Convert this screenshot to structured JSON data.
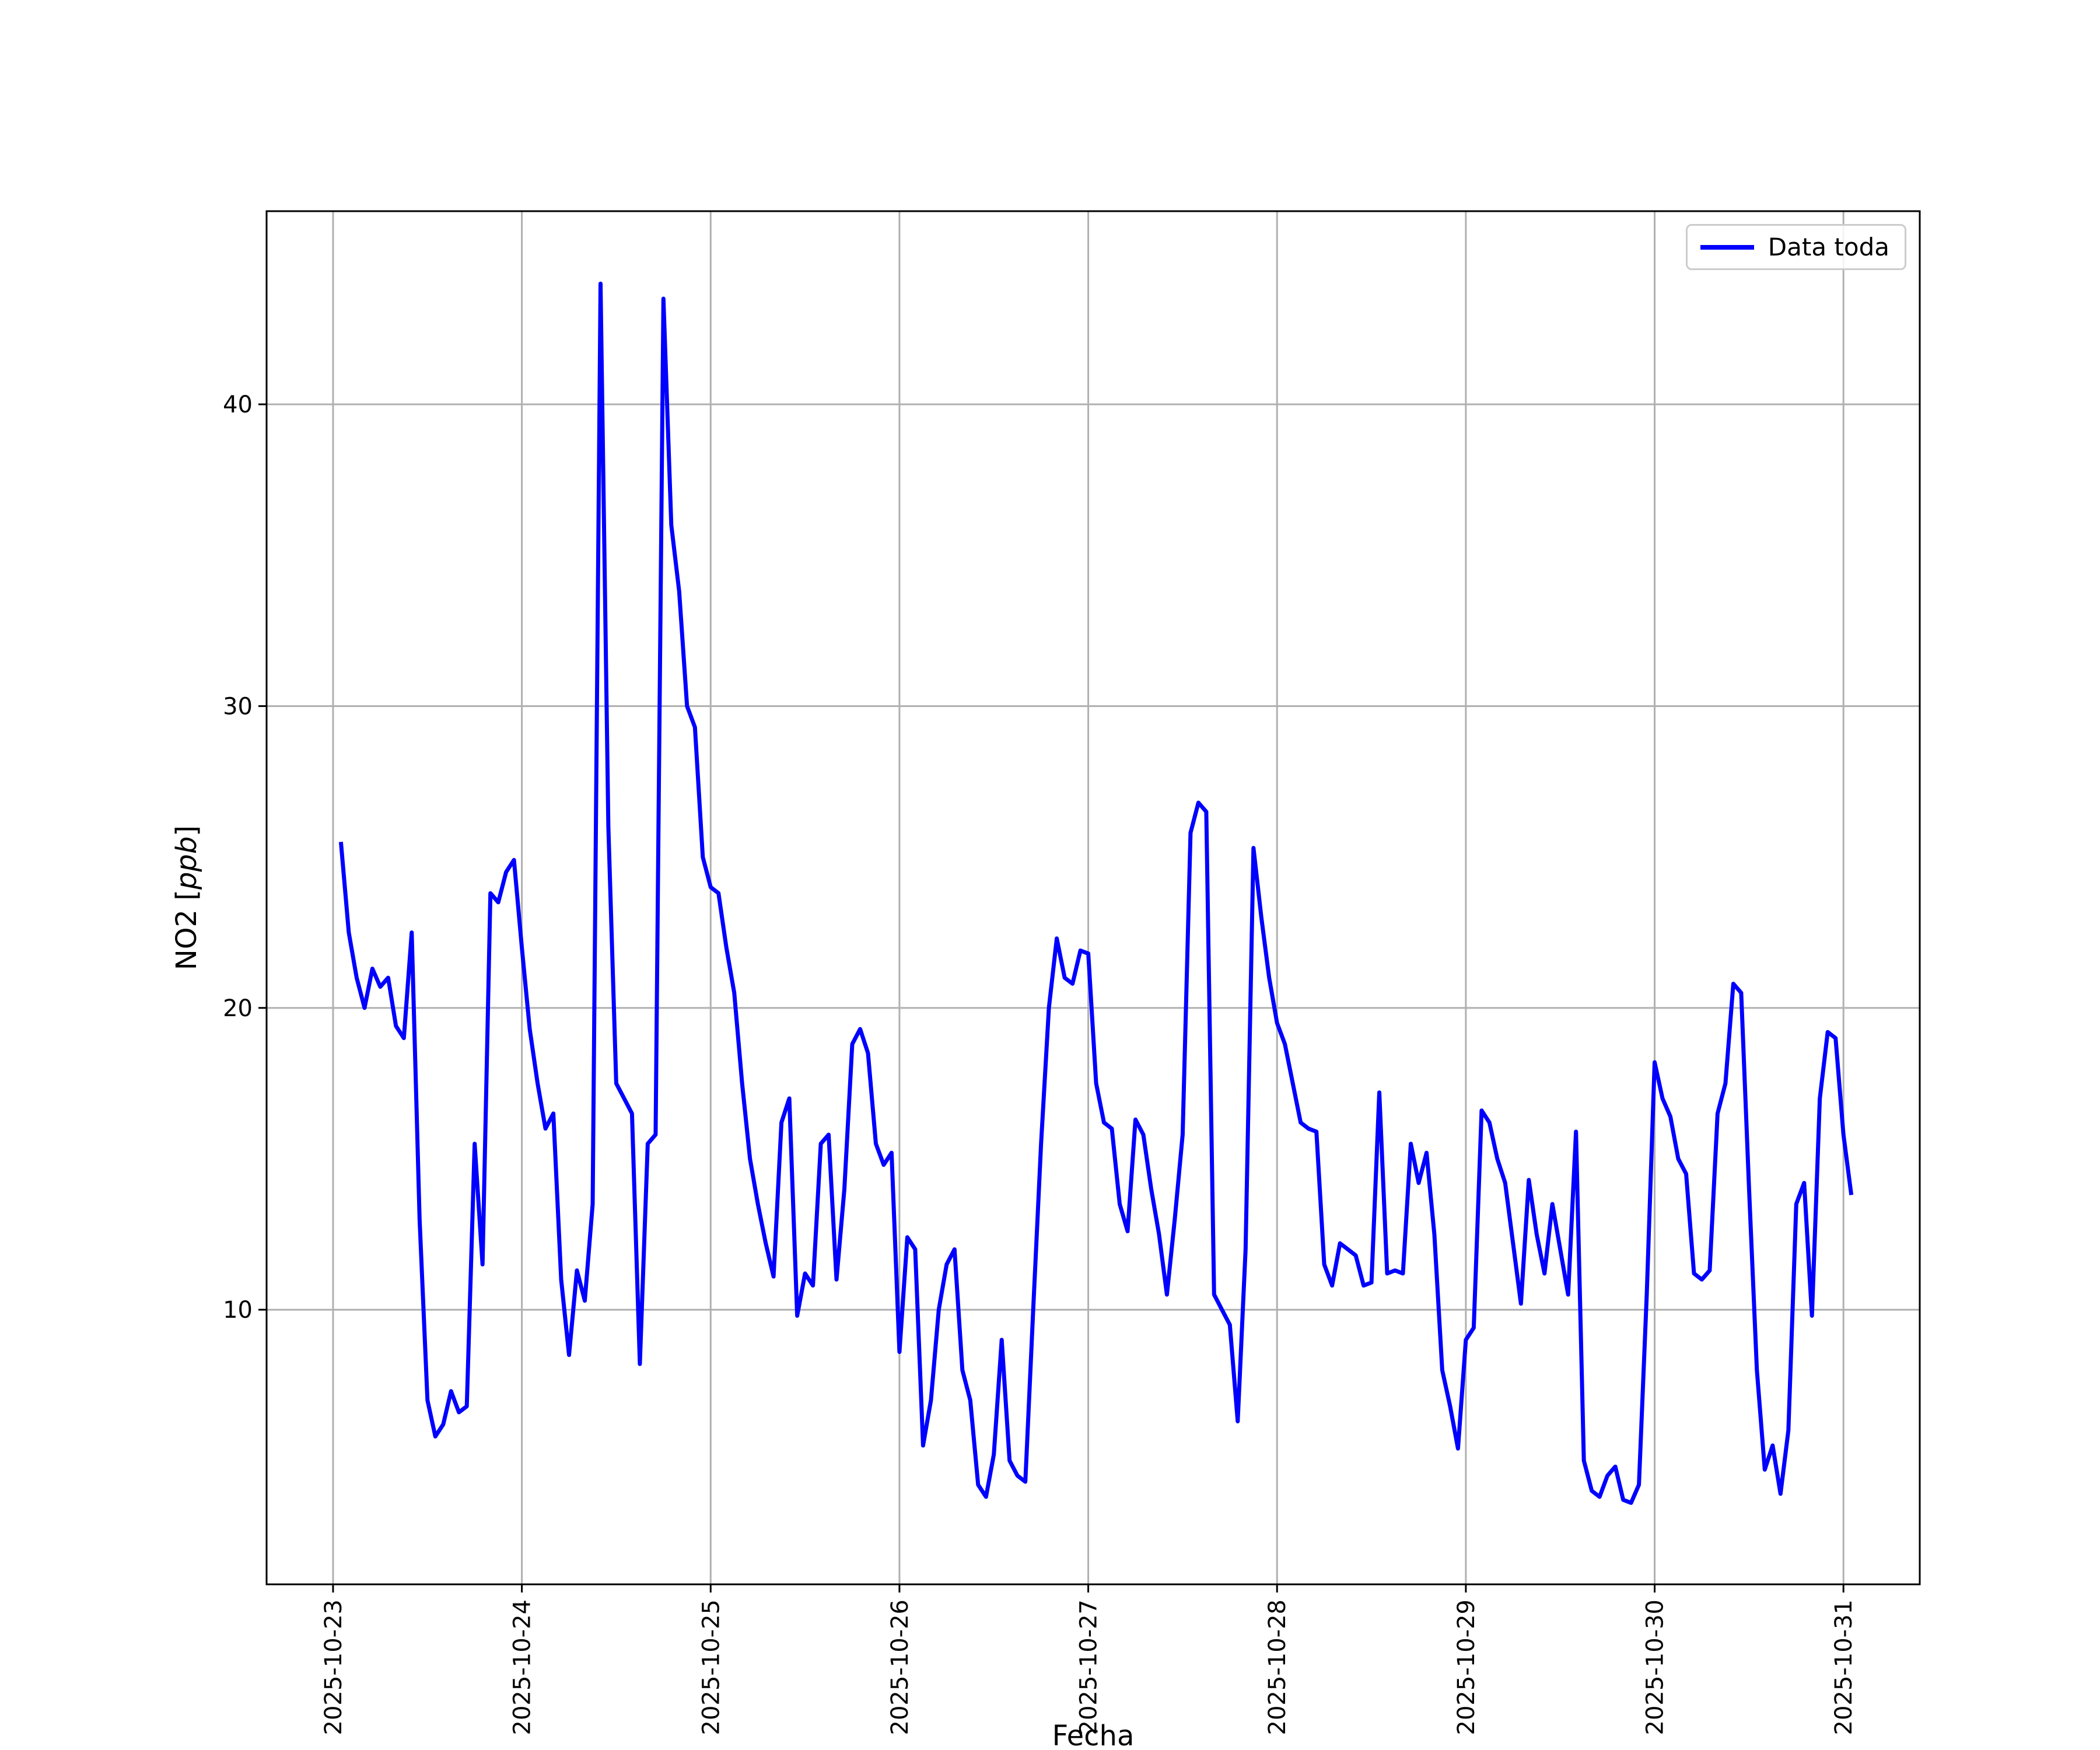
{
  "colors": {
    "line": "#0000ff",
    "grid": "#b0b0b0",
    "axes": "#000000",
    "background": "#ffffff",
    "legend_border": "#cccccc"
  },
  "chart_data": {
    "type": "line",
    "title": "",
    "xlabel": "Fecha",
    "ylabel": "NO2 [ppb]",
    "ylabel_parts": {
      "prefix": "NO2 [",
      "italic": "ppb",
      "suffix": "]"
    },
    "grid": true,
    "legend_position": "upper right",
    "x_tick_labels": [
      "2025-10-23",
      "2025-10-24",
      "2025-10-25",
      "2025-10-26",
      "2025-10-27",
      "2025-10-28",
      "2025-10-29",
      "2025-10-30",
      "2025-10-31"
    ],
    "x_tick_hours": [
      0,
      24,
      48,
      72,
      96,
      120,
      144,
      168,
      192
    ],
    "y_ticks": [
      10,
      20,
      30,
      40
    ],
    "xlim_hours": [
      -8.45,
      201.7
    ],
    "ylim": [
      0.9,
      46.4
    ],
    "x_unit": "hours since 2025-10-23 00:00",
    "series": [
      {
        "name": "Data toda",
        "color": "#0000ff",
        "x_start_hour": 1,
        "x_step_hours": 1,
        "values": [
          25.5,
          22.5,
          21.0,
          20.0,
          21.3,
          20.7,
          21.0,
          19.4,
          19.0,
          22.5,
          13.0,
          7.0,
          5.8,
          6.2,
          7.3,
          6.6,
          6.8,
          15.5,
          11.5,
          23.8,
          23.5,
          24.5,
          24.9,
          22.0,
          19.3,
          17.5,
          16.0,
          16.5,
          11.0,
          8.5,
          11.3,
          10.3,
          13.5,
          44.0,
          26.0,
          17.5,
          17.0,
          16.5,
          8.2,
          15.5,
          15.8,
          43.5,
          36.0,
          33.8,
          30.0,
          29.3,
          25.0,
          24.0,
          23.8,
          22.0,
          20.5,
          17.5,
          15.0,
          13.5,
          12.2,
          11.1,
          16.2,
          17.0,
          9.8,
          11.2,
          10.8,
          15.5,
          15.8,
          11.0,
          14.0,
          18.8,
          19.3,
          18.5,
          15.5,
          14.8,
          15.2,
          8.6,
          12.4,
          12.0,
          5.5,
          7.0,
          10.0,
          11.5,
          12.0,
          8.0,
          7.0,
          4.2,
          3.8,
          5.2,
          9.0,
          5.0,
          4.5,
          4.3,
          10.0,
          15.5,
          20.0,
          22.3,
          21.0,
          20.8,
          21.9,
          21.8,
          17.5,
          16.2,
          16.0,
          13.5,
          12.6,
          16.3,
          15.8,
          14.0,
          12.5,
          10.5,
          13.0,
          15.8,
          25.8,
          26.8,
          26.5,
          10.5,
          10.0,
          9.5,
          6.3,
          12.0,
          25.3,
          23.0,
          21.0,
          19.5,
          18.8,
          17.5,
          16.2,
          16.0,
          15.9,
          11.5,
          10.8,
          12.2,
          12.0,
          11.8,
          10.8,
          10.9,
          17.2,
          11.2,
          11.3,
          11.2,
          15.5,
          14.2,
          15.2,
          12.5,
          8.0,
          6.8,
          5.4,
          9.0,
          9.4,
          16.6,
          16.2,
          15.0,
          14.2,
          12.2,
          10.2,
          14.3,
          12.5,
          11.2,
          13.5,
          12.0,
          10.5,
          15.9,
          5.0,
          4.0,
          3.8,
          4.5,
          4.8,
          3.7,
          3.6,
          4.2,
          10.5,
          18.2,
          17.0,
          16.4,
          15.0,
          14.5,
          11.2,
          11.0,
          11.3,
          16.5,
          17.5,
          20.8,
          20.5,
          14.0,
          8.0,
          4.7,
          5.5,
          3.9,
          6.0,
          13.5,
          14.2,
          9.8,
          17.0,
          19.2,
          19.0,
          15.8,
          13.8
        ]
      }
    ]
  }
}
